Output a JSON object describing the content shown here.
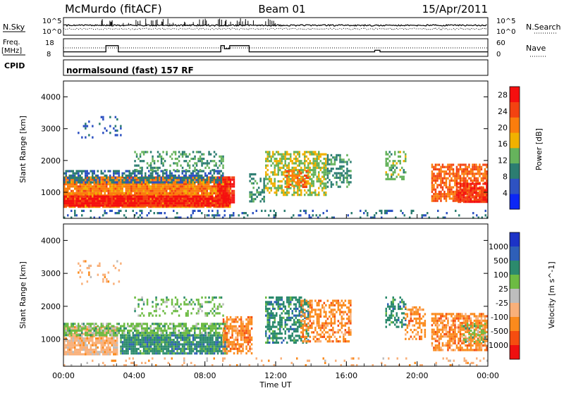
{
  "header": {
    "station": "McMurdo (fitACF)",
    "beam": "Beam 01",
    "date": "15/Apr/2011"
  },
  "strip_panels": {
    "nsky": {
      "label": "N.Sky",
      "right_label": "N.Search",
      "y_top": "10^5",
      "y_bottom": "10^0"
    },
    "freq": {
      "label_line1": "Freq.",
      "label_line2": "[MHz]",
      "right_label": "Nave",
      "left_ticks": [
        "18",
        "8"
      ],
      "right_ticks": [
        "60",
        "0"
      ],
      "freq_steps": [
        {
          "t0": 0.0,
          "t1": 2.4,
          "mhz": 10
        },
        {
          "t0": 2.4,
          "t1": 3.1,
          "mhz": 14
        },
        {
          "t0": 3.1,
          "t1": 8.9,
          "mhz": 10
        },
        {
          "t0": 8.9,
          "t1": 9.1,
          "mhz": 14
        },
        {
          "t0": 9.1,
          "t1": 9.4,
          "mhz": 12
        },
        {
          "t0": 9.4,
          "t1": 10.5,
          "mhz": 14
        },
        {
          "t0": 10.5,
          "t1": 17.6,
          "mhz": 10
        },
        {
          "t0": 17.6,
          "t1": 17.9,
          "mhz": 11
        },
        {
          "t0": 17.9,
          "t1": 24.0,
          "mhz": 10
        }
      ]
    },
    "cpid": {
      "label": "CPID",
      "text": "normalsound (fast) 157 RF"
    }
  },
  "chart_data": [
    {
      "type": "heatmap",
      "title": "",
      "xlabel": "Time UT",
      "ylabel": "Slant Range [km]",
      "x_ticks": [
        "00:00",
        "04:00",
        "08:00",
        "12:00",
        "16:00",
        "20:00",
        "00:00"
      ],
      "xlim_hours": [
        0,
        24
      ],
      "ylim": [
        180,
        4500
      ],
      "y_ticks": [
        1000,
        2000,
        3000,
        4000
      ],
      "colorbar": {
        "label": "Power [dB]",
        "ticks": [
          4,
          8,
          12,
          16,
          20,
          24,
          28
        ],
        "range": [
          0,
          30
        ],
        "colors": [
          "#0c27f5",
          "#2e52c2",
          "#2c7d71",
          "#66b35c",
          "#f1b100",
          "#fb7d0d",
          "#f34211",
          "#f50f0f"
        ]
      },
      "blobs": [
        {
          "t0": 0.0,
          "t1": 9.4,
          "r0": 520,
          "r1": 1500,
          "value": 22,
          "density": 0.95
        },
        {
          "t0": 0.0,
          "t1": 9.4,
          "r0": 550,
          "r1": 900,
          "value": 29,
          "density": 0.95
        },
        {
          "t0": 8.7,
          "t1": 9.6,
          "r0": 650,
          "r1": 1500,
          "value": 29,
          "density": 0.9
        },
        {
          "t0": 0.0,
          "t1": 9.0,
          "r0": 1300,
          "r1": 1700,
          "value": 9,
          "density": 0.6
        },
        {
          "t0": 4.0,
          "t1": 9.0,
          "r0": 1700,
          "r1": 2300,
          "value": 12,
          "density": 0.35
        },
        {
          "t0": 0.8,
          "t1": 3.2,
          "r0": 2700,
          "r1": 3400,
          "value": 7,
          "density": 0.12
        },
        {
          "t0": 10.5,
          "t1": 11.3,
          "r0": 700,
          "r1": 1600,
          "value": 11,
          "density": 0.45
        },
        {
          "t0": 11.4,
          "t1": 14.8,
          "r0": 900,
          "r1": 2300,
          "value": 16,
          "density": 0.6
        },
        {
          "t0": 12.5,
          "t1": 13.8,
          "r0": 1200,
          "r1": 1700,
          "value": 24,
          "density": 0.55
        },
        {
          "t0": 14.9,
          "t1": 16.2,
          "r0": 1200,
          "r1": 2200,
          "value": 11,
          "density": 0.45
        },
        {
          "t0": 18.2,
          "t1": 19.3,
          "r0": 1400,
          "r1": 2300,
          "value": 14,
          "density": 0.5
        },
        {
          "t0": 20.8,
          "t1": 23.9,
          "r0": 700,
          "r1": 1900,
          "value": 24,
          "density": 0.75
        },
        {
          "t0": 22.2,
          "t1": 23.9,
          "r0": 700,
          "r1": 1300,
          "value": 28,
          "density": 0.8
        },
        {
          "t0": 0.0,
          "t1": 24.0,
          "r0": 200,
          "r1": 450,
          "value": 8,
          "density": 0.18
        }
      ]
    },
    {
      "type": "heatmap",
      "title": "",
      "xlabel": "Time UT",
      "ylabel": "Slant Range [km]",
      "x_ticks": [
        "00:00",
        "04:00",
        "08:00",
        "12:00",
        "16:00",
        "20:00",
        "00:00"
      ],
      "xlim_hours": [
        0,
        24
      ],
      "ylim": [
        180,
        4500
      ],
      "y_ticks": [
        1000,
        2000,
        3000,
        4000
      ],
      "colorbar": {
        "label": "Velocity [m s^-1]",
        "ticks": [
          "1000",
          "500",
          "100",
          "25",
          "-25",
          "-100",
          "-500",
          "-1000"
        ],
        "colors": [
          "#1c33c7",
          "#2e5fb8",
          "#2c8a6d",
          "#6dbb43",
          "#bdbdbd",
          "#f9b07a",
          "#fb8a1c",
          "#f54d10",
          "#ef1010"
        ]
      },
      "blobs": [
        {
          "t0": 0.0,
          "t1": 3.0,
          "r0": 550,
          "r1": 1400,
          "value": "-100",
          "density": 0.85
        },
        {
          "t0": 0.0,
          "t1": 9.2,
          "r0": 1100,
          "r1": 1500,
          "value": "25",
          "density": 0.7
        },
        {
          "t0": 3.2,
          "t1": 9.2,
          "r0": 550,
          "r1": 1150,
          "value": "100",
          "density": 0.9
        },
        {
          "t0": 9.0,
          "t1": 10.6,
          "r0": 600,
          "r1": 1700,
          "value": "-500",
          "density": 0.7
        },
        {
          "t0": 4.0,
          "t1": 9.0,
          "r0": 1700,
          "r1": 2300,
          "value": "25",
          "density": 0.3
        },
        {
          "t0": 0.8,
          "t1": 3.2,
          "r0": 2700,
          "r1": 3400,
          "value": "-100",
          "density": 0.1
        },
        {
          "t0": 11.4,
          "t1": 13.8,
          "r0": 900,
          "r1": 2300,
          "value": "100",
          "density": 0.55
        },
        {
          "t0": 13.4,
          "t1": 16.2,
          "r0": 900,
          "r1": 2200,
          "value": "-500",
          "density": 0.5
        },
        {
          "t0": 18.2,
          "t1": 19.3,
          "r0": 1400,
          "r1": 2300,
          "value": "100",
          "density": 0.4
        },
        {
          "t0": 19.3,
          "t1": 20.4,
          "r0": 1000,
          "r1": 2000,
          "value": "-500",
          "density": 0.45
        },
        {
          "t0": 20.8,
          "t1": 23.9,
          "r0": 700,
          "r1": 1800,
          "value": "-500",
          "density": 0.7
        },
        {
          "t0": 22.5,
          "t1": 23.8,
          "r0": 900,
          "r1": 1500,
          "value": "25",
          "density": 0.35
        },
        {
          "t0": 0.0,
          "t1": 24.0,
          "r0": 200,
          "r1": 450,
          "value": "-100",
          "density": 0.12
        }
      ]
    }
  ]
}
